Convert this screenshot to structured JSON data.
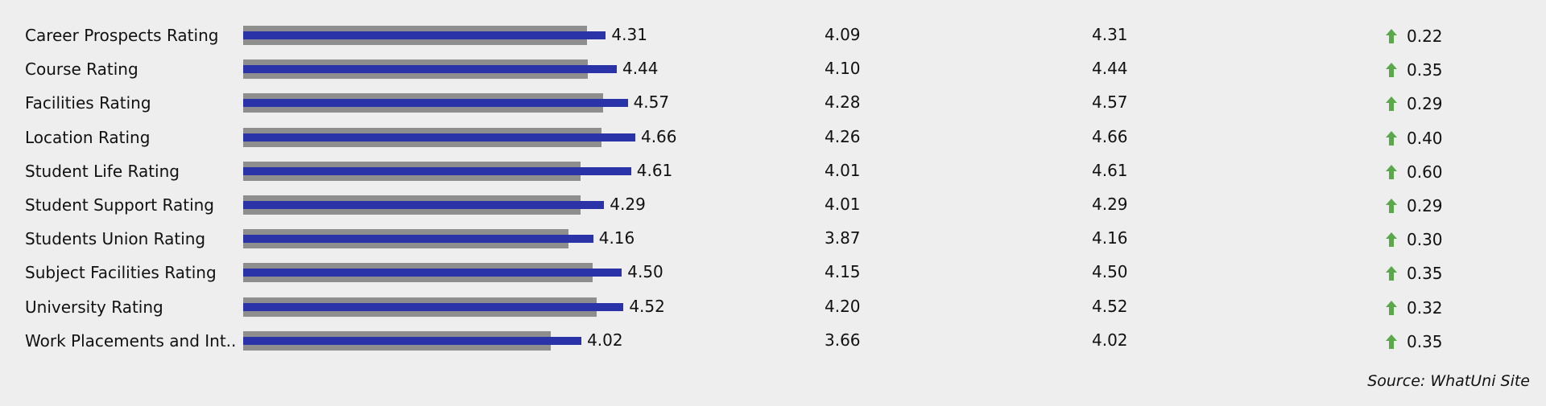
{
  "chart_data": {
    "type": "bar",
    "value_axis": {
      "min": 0,
      "max": 5
    },
    "categories": [
      "Career Prospects Rating",
      "Course Rating",
      "Facilities Rating",
      "Location Rating",
      "Student Life Rating",
      "Student Support Rating",
      "Students Union Rating",
      "Subject Facilities Rating",
      "University Rating",
      "Work Placements and Int.."
    ],
    "series": [
      {
        "values": [
          4.09,
          4.1,
          4.28,
          4.26,
          4.01,
          4.01,
          3.87,
          4.15,
          4.2,
          3.66
        ],
        "color": "#8e8e8e"
      },
      {
        "values": [
          4.31,
          4.44,
          4.57,
          4.66,
          4.61,
          4.29,
          4.16,
          4.5,
          4.52,
          4.02
        ],
        "color": "#2a33a8"
      }
    ],
    "bar_labels": [
      "4.31",
      "4.44",
      "4.57",
      "4.66",
      "4.61",
      "4.29",
      "4.16",
      "4.50",
      "4.52",
      "4.02"
    ],
    "columns": [
      {
        "values": [
          "4.09",
          "4.10",
          "4.28",
          "4.26",
          "4.01",
          "4.01",
          "3.87",
          "4.15",
          "4.20",
          "3.66"
        ]
      },
      {
        "values": [
          "4.31",
          "4.44",
          "4.57",
          "4.66",
          "4.61",
          "4.29",
          "4.16",
          "4.50",
          "4.52",
          "4.02"
        ]
      },
      {
        "values": [
          "0.22",
          "0.35",
          "0.29",
          "0.40",
          "0.60",
          "0.29",
          "0.30",
          "0.35",
          "0.32",
          "0.35"
        ]
      }
    ],
    "difference_icon": "up-arrow-icon",
    "difference_color": "#5aa84a"
  },
  "source": "Source: WhatUni Site"
}
